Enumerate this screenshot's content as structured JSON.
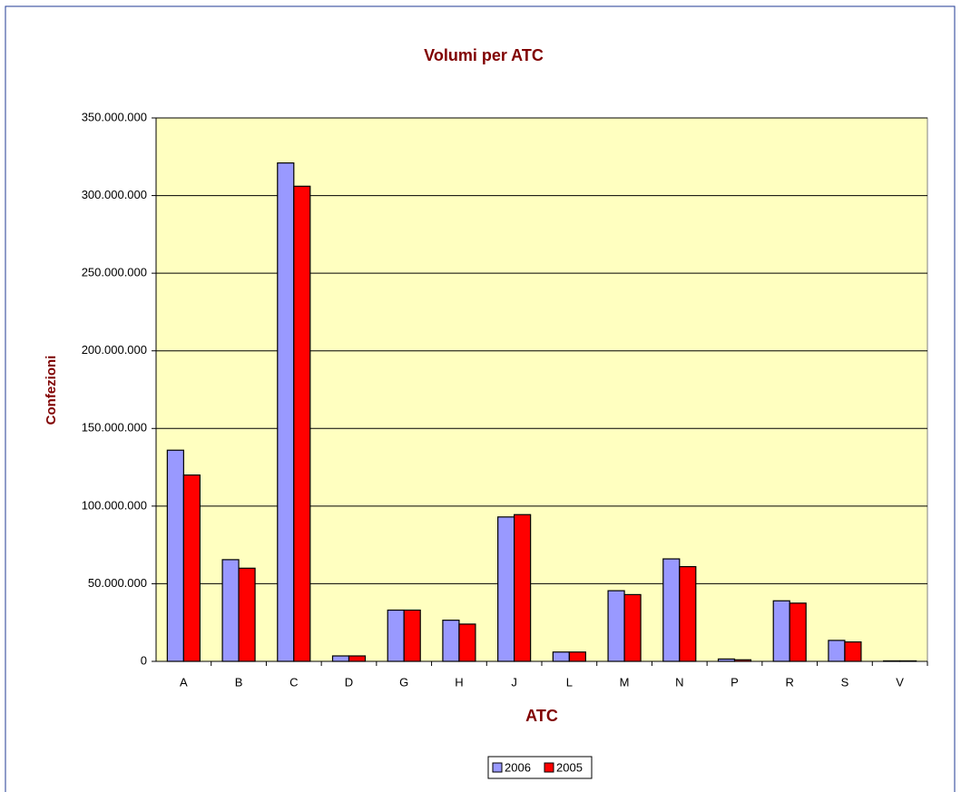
{
  "chart_data": {
    "type": "bar",
    "title": "Volumi per ATC",
    "x_label": "ATC",
    "y_label": "Confezioni",
    "categories": [
      "A",
      "B",
      "C",
      "D",
      "G",
      "H",
      "J",
      "L",
      "M",
      "N",
      "P",
      "R",
      "S",
      "V"
    ],
    "series": [
      {
        "name": "2006",
        "color": "#9999ff",
        "values": [
          136000000,
          65500000,
          321000000,
          3500000,
          33000000,
          26500000,
          93000000,
          6000000,
          45500000,
          66000000,
          1500000,
          39000000,
          13500000,
          300000
        ]
      },
      {
        "name": "2005",
        "color": "#ff0000",
        "values": [
          120000000,
          60000000,
          306000000,
          3500000,
          33000000,
          24000000,
          94500000,
          6000000,
          43000000,
          61000000,
          1000000,
          37500000,
          12500000,
          300000
        ]
      }
    ],
    "ylim": [
      0,
      350000000
    ],
    "yticks": [
      0,
      {
        "value": 50000000,
        "label": "50.000.000"
      },
      {
        "value": 100000000,
        "label": "100.000.000"
      },
      {
        "value": 150000000,
        "label": "150.000.000"
      },
      {
        "value": 200000000,
        "label": "200.000.000"
      },
      {
        "value": 250000000,
        "label": "250.000.000"
      },
      {
        "value": 300000000,
        "label": "300.000.000"
      },
      {
        "value": 350000000,
        "label": "350.000.000"
      }
    ],
    "grid": true,
    "legend": "bottom",
    "plot_background": "#ffffc0"
  }
}
